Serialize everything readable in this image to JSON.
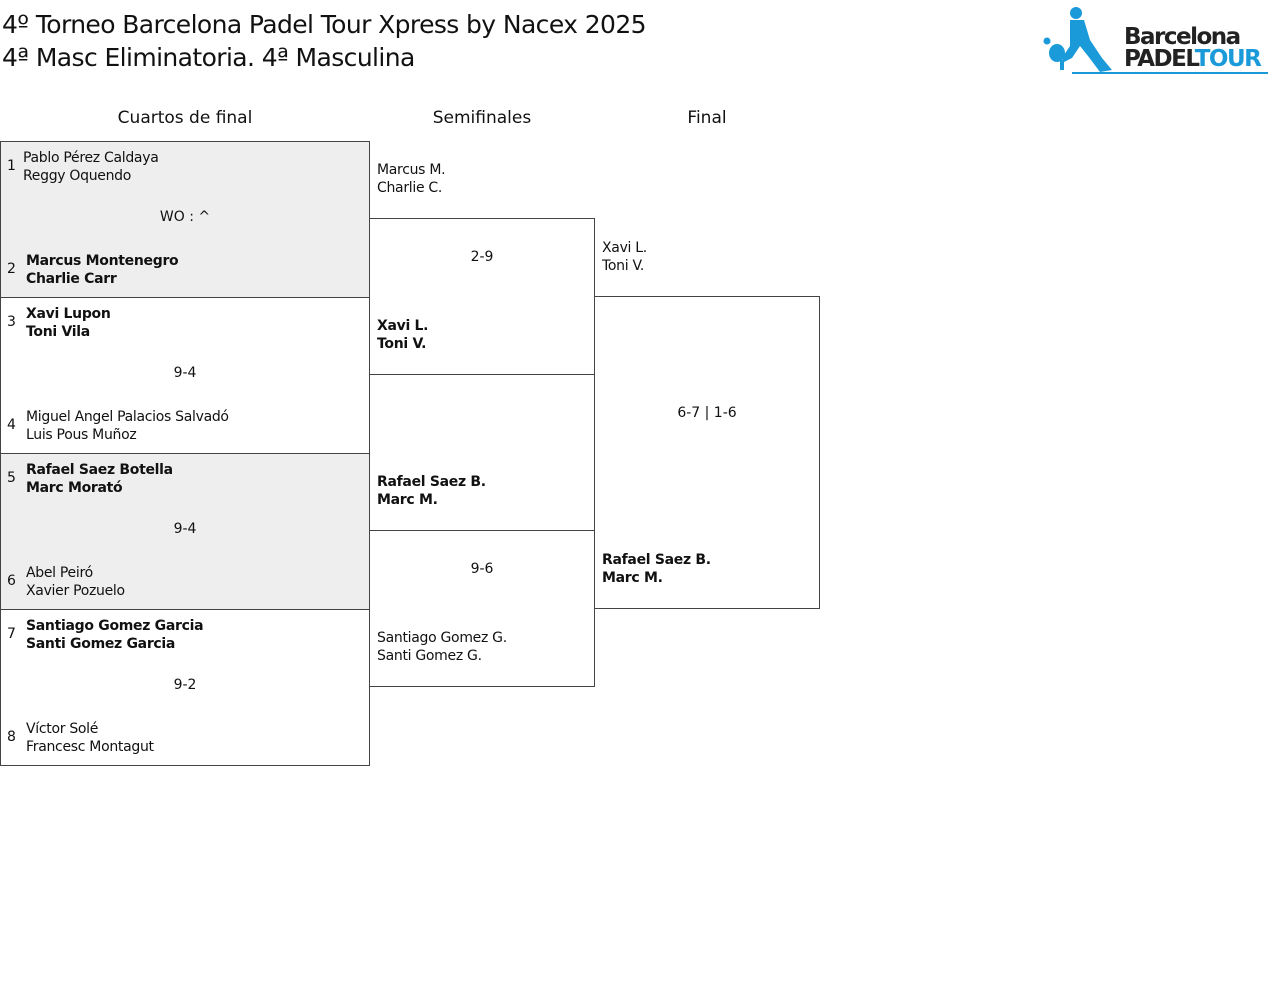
{
  "title_line1": "4º Torneo Barcelona Padel Tour Xpress by Nacex 2025",
  "title_line2": "4ª Masc Eliminatoria. 4ª Masculina",
  "logo": {
    "text1": "Barcelona",
    "text2a": "PADEL",
    "text2b": "TOUR",
    "color": "#1a9ad9"
  },
  "rounds": [
    "Cuartos de final",
    "Semifinales",
    "Final"
  ],
  "quarterfinals": [
    {
      "score": "WO : ^",
      "teams": [
        {
          "seed": "1",
          "p1": "Pablo Pérez Caldaya",
          "p2": "Reggy Oquendo"
        },
        {
          "seed": "2",
          "p1": "Marcus Montenegro",
          "p2": "Charlie Carr"
        }
      ]
    },
    {
      "score": "9-4",
      "teams": [
        {
          "seed": "3",
          "p1": "Xavi Lupon",
          "p2": "Toni Vila"
        },
        {
          "seed": "4",
          "p1": "Miguel Angel Palacios Salvadó",
          "p2": "Luis Pous Muñoz"
        }
      ]
    },
    {
      "score": "9-4",
      "teams": [
        {
          "seed": "5",
          "p1": "Rafael Saez Botella",
          "p2": "Marc Morató"
        },
        {
          "seed": "6",
          "p1": "Abel Peiró",
          "p2": "Xavier Pozuelo"
        }
      ]
    },
    {
      "score": "9-2",
      "teams": [
        {
          "seed": "7",
          "p1": "Santiago Gomez Garcia",
          "p2": "Santi Gomez Garcia"
        },
        {
          "seed": "8",
          "p1": "Víctor Solé",
          "p2": "Francesc Montagut"
        }
      ]
    }
  ],
  "semifinals": [
    {
      "score": "2-9",
      "teams": [
        {
          "p1": "Marcus M.",
          "p2": "Charlie C."
        },
        {
          "p1": "Xavi L.",
          "p2": "Toni V."
        }
      ]
    },
    {
      "score": "9-6",
      "teams": [
        {
          "p1": "Rafael Saez B.",
          "p2": "Marc M."
        },
        {
          "p1": "Santiago Gomez G.",
          "p2": "Santi Gomez G."
        }
      ]
    }
  ],
  "final": {
    "score": "6-7 | 1-6",
    "teams": [
      {
        "p1": "Xavi L.",
        "p2": "Toni V."
      },
      {
        "p1": "Rafael Saez B.",
        "p2": "Marc M."
      }
    ]
  }
}
